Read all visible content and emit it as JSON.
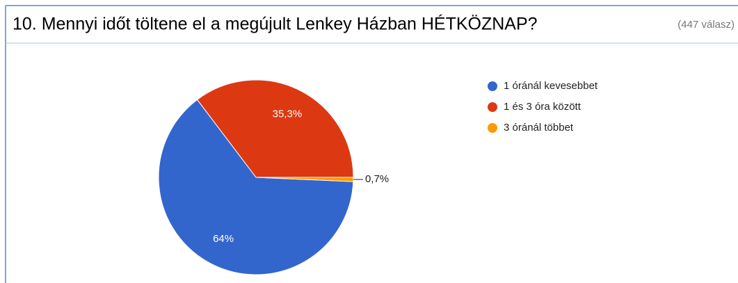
{
  "chart_data": {
    "type": "pie",
    "title": "10. Mennyi időt töltene el a megújult Lenkey Házban HÉTKÖZNAP?",
    "subtitle": "(447 válasz)",
    "categories": [
      "1 óránál kevesebbet",
      "1 és 3 óra között",
      "3 óránál többet"
    ],
    "values": [
      64,
      35.3,
      0.7
    ],
    "value_labels": [
      "64%",
      "35,3%",
      "0,7%"
    ],
    "colors": [
      "#3366cc",
      "#dc3912",
      "#ff9900"
    ],
    "legend": "right"
  }
}
